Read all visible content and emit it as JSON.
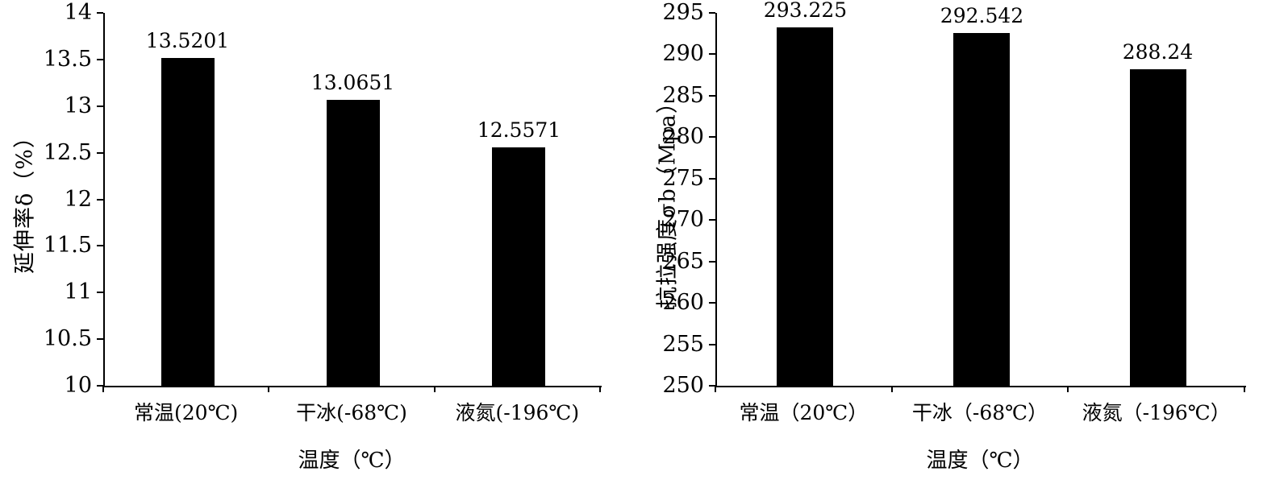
{
  "figure": {
    "background": "#ffffff",
    "text_color": "#000000"
  },
  "chart_data": [
    {
      "type": "bar",
      "title": "",
      "ylabel": "延伸率δ（%）",
      "xlabel": "温度（℃）",
      "categories": [
        "常温(20℃)",
        "干冰(-68℃)",
        "液氮(-196℃)"
      ],
      "values": [
        13.5201,
        13.0651,
        12.5571
      ],
      "data_labels": [
        "13.5201",
        "13.0651",
        "12.5571"
      ],
      "ylim": [
        10,
        14
      ],
      "ytick_interval": 0.5,
      "ytick_labels": [
        "10",
        "10.5",
        "11",
        "11.5",
        "12",
        "12.5",
        "13",
        "13.5",
        "14"
      ],
      "grid": false,
      "legend": "none",
      "bar_color": "#000000"
    },
    {
      "type": "bar",
      "title": "",
      "ylabel": "抗拉强度σb（Mpa）",
      "xlabel": "温度（℃）",
      "categories": [
        "常温（20℃）",
        "干冰（-68℃）",
        "液氮（-196℃）"
      ],
      "values": [
        293.225,
        292.542,
        288.24
      ],
      "data_labels": [
        "293.225",
        "292.542",
        "288.24"
      ],
      "ylim": [
        250,
        295
      ],
      "ytick_interval": 5,
      "ytick_labels": [
        "250",
        "255",
        "260",
        "265",
        "270",
        "275",
        "280",
        "285",
        "290",
        "295"
      ],
      "grid": false,
      "legend": "none",
      "bar_color": "#000000"
    }
  ]
}
